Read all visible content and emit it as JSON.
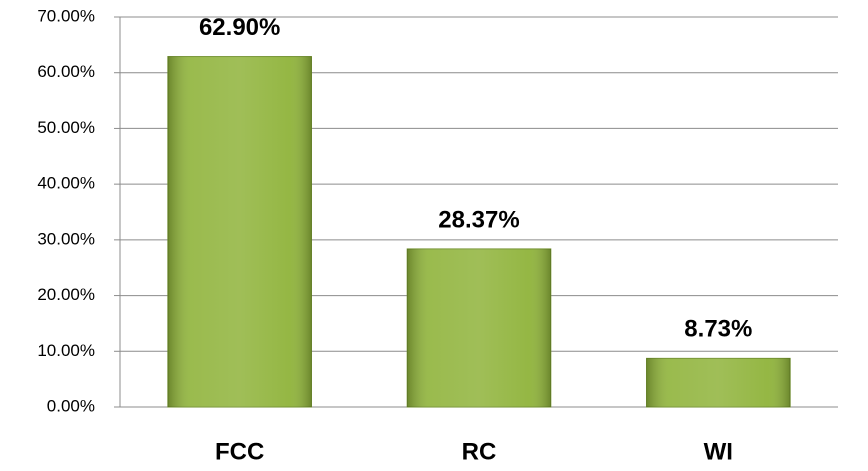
{
  "chart_data": {
    "type": "bar",
    "categories": [
      "FCC",
      "RC",
      "WI"
    ],
    "values": [
      62.9,
      28.37,
      8.73
    ],
    "value_labels": [
      "62.90%",
      "28.37%",
      "8.73%"
    ],
    "color": "#8fb33a",
    "ylim": [
      0,
      70
    ],
    "yticks": [
      {
        "value": 0,
        "label": "0.00%"
      },
      {
        "value": 10,
        "label": "10.00%"
      },
      {
        "value": 20,
        "label": "20.00%"
      },
      {
        "value": 30,
        "label": "30.00%"
      },
      {
        "value": 40,
        "label": "40.00%"
      },
      {
        "value": 50,
        "label": "50.00%"
      },
      {
        "value": 60,
        "label": "60.00%"
      },
      {
        "value": 70,
        "label": "70.00%"
      }
    ],
    "grid": true
  }
}
